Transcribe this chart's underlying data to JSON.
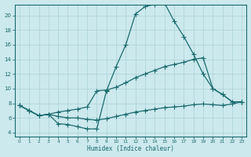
{
  "title": "",
  "xlabel": "Humidex (Indice chaleur)",
  "ylabel": "",
  "xlim": [
    -0.5,
    23.5
  ],
  "ylim": [
    3.5,
    21.5
  ],
  "yticks": [
    4,
    6,
    8,
    10,
    12,
    14,
    16,
    18,
    20
  ],
  "xticks": [
    0,
    1,
    2,
    3,
    4,
    5,
    6,
    7,
    8,
    9,
    10,
    11,
    12,
    13,
    14,
    15,
    16,
    17,
    18,
    19,
    20,
    21,
    22,
    23
  ],
  "bg_color": "#cce9ed",
  "line_color": "#1a6b6e",
  "grid_color": "#b0d5da",
  "line1_x": [
    0,
    1,
    2,
    3,
    4,
    5,
    6,
    7,
    8,
    9,
    10,
    11,
    12,
    13,
    14,
    15,
    16,
    17,
    18,
    19,
    20,
    21,
    22,
    23
  ],
  "line1_y": [
    7.7,
    7.0,
    6.3,
    6.5,
    5.2,
    5.1,
    4.8,
    4.5,
    4.5,
    9.7,
    13.0,
    16.0,
    20.2,
    21.2,
    21.5,
    21.7,
    19.2,
    17.1,
    14.7,
    12.0,
    10.0,
    9.2,
    8.2,
    8.2
  ],
  "line2_x": [
    0,
    1,
    2,
    3,
    4,
    5,
    6,
    7,
    8,
    9,
    10,
    11,
    12,
    13,
    14,
    15,
    16,
    17,
    18,
    19,
    20,
    21,
    22,
    23
  ],
  "line2_y": [
    7.7,
    7.0,
    6.3,
    6.5,
    6.8,
    7.0,
    7.2,
    7.5,
    9.7,
    9.8,
    10.2,
    10.8,
    11.5,
    12.0,
    12.5,
    13.0,
    13.3,
    13.6,
    14.0,
    14.2,
    10.0,
    9.2,
    8.2,
    8.2
  ],
  "line3_x": [
    0,
    1,
    2,
    3,
    4,
    5,
    6,
    7,
    8,
    9,
    10,
    11,
    12,
    13,
    14,
    15,
    16,
    17,
    18,
    19,
    20,
    21,
    22,
    23
  ],
  "line3_y": [
    7.7,
    7.0,
    6.3,
    6.5,
    6.2,
    6.0,
    6.0,
    5.8,
    5.7,
    5.9,
    6.2,
    6.5,
    6.8,
    7.0,
    7.2,
    7.4,
    7.5,
    7.6,
    7.8,
    7.9,
    7.8,
    7.7,
    7.9,
    8.2
  ]
}
